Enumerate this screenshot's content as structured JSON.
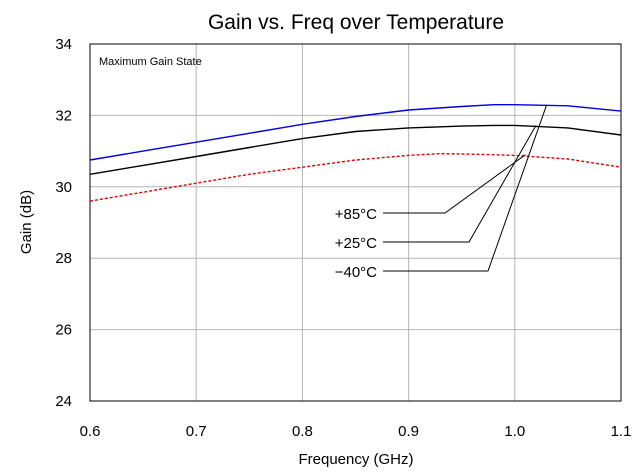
{
  "chart_data": {
    "type": "line",
    "title": "Gain vs. Freq over Temperature",
    "xlabel": "Frequency (GHz)",
    "ylabel": "Gain (dB)",
    "xlim": [
      0.6,
      1.1
    ],
    "ylim": [
      24,
      34
    ],
    "x_ticks": [
      0.6,
      0.7,
      0.8,
      0.9,
      1.0,
      1.1
    ],
    "x_tick_labels": [
      "0.6",
      "0.7",
      "0.8",
      "0.9",
      "1.0",
      "1.1"
    ],
    "y_ticks": [
      24,
      26,
      28,
      30,
      32,
      34
    ],
    "y_tick_labels": [
      "24",
      "26",
      "28",
      "30",
      "32",
      "34"
    ],
    "grid": true,
    "annotation": "Maximum Gain State",
    "series": [
      {
        "name": "+85°C",
        "color": "#e00000",
        "dashed": true,
        "x": [
          0.6,
          0.65,
          0.7,
          0.75,
          0.8,
          0.85,
          0.9,
          0.93,
          0.95,
          0.98,
          1.0,
          1.05,
          1.1
        ],
        "y": [
          29.6,
          29.85,
          30.1,
          30.35,
          30.55,
          30.75,
          30.88,
          30.93,
          30.92,
          30.9,
          30.88,
          30.78,
          30.55
        ]
      },
      {
        "name": "+25°C",
        "color": "#000000",
        "dashed": false,
        "x": [
          0.6,
          0.65,
          0.7,
          0.75,
          0.8,
          0.85,
          0.9,
          0.95,
          0.98,
          1.0,
          1.05,
          1.1
        ],
        "y": [
          30.35,
          30.6,
          30.85,
          31.1,
          31.35,
          31.55,
          31.65,
          31.7,
          31.72,
          31.72,
          31.65,
          31.45
        ]
      },
      {
        "name": "−40°C",
        "color": "#0000e0",
        "dashed": false,
        "x": [
          0.6,
          0.65,
          0.7,
          0.75,
          0.8,
          0.85,
          0.9,
          0.95,
          0.98,
          1.0,
          1.05,
          1.1
        ],
        "y": [
          30.75,
          31.0,
          31.25,
          31.5,
          31.75,
          31.97,
          32.15,
          32.25,
          32.3,
          32.3,
          32.27,
          32.12
        ]
      }
    ],
    "callout_targets": [
      {
        "x": 1.01,
        "y": 30.9
      },
      {
        "x": 1.02,
        "y": 31.72
      },
      {
        "x": 1.03,
        "y": 32.3
      }
    ]
  }
}
